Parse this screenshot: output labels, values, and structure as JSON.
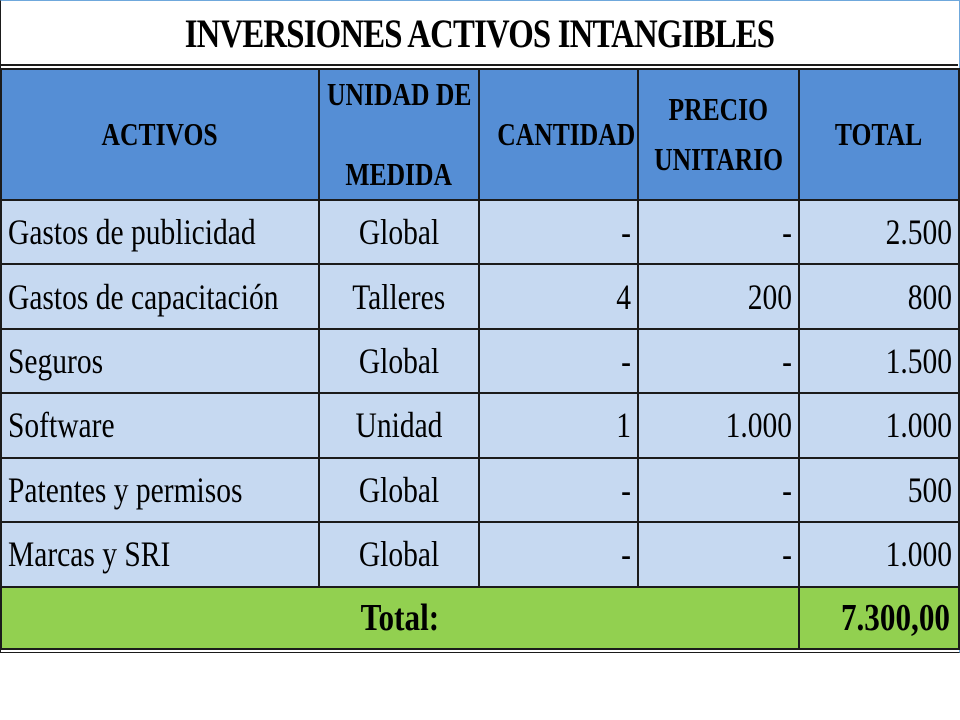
{
  "title": "INVERSIONES ACTIVOS INTANGIBLES",
  "columns": {
    "activos": "ACTIVOS",
    "unidad_line1": "UNIDAD DE",
    "unidad_line2": "MEDIDA",
    "cantidad": "CANTIDAD",
    "precio_line1": "PRECIO",
    "precio_line2": "UNITARIO",
    "total": "TOTAL"
  },
  "rows": [
    {
      "activo": "Gastos de publicidad",
      "unidad": "Global",
      "cantidad": "-",
      "precio": "-",
      "total": "2.500"
    },
    {
      "activo": "Gastos de capacitación",
      "unidad": "Talleres",
      "cantidad": "4",
      "precio": "200",
      "total": "800"
    },
    {
      "activo": "Seguros",
      "unidad": "Global",
      "cantidad": "-",
      "precio": "-",
      "total": "1.500"
    },
    {
      "activo": "Software",
      "unidad": "Unidad",
      "cantidad": "1",
      "precio": "1.000",
      "total": "1.000"
    },
    {
      "activo": "Patentes y permisos",
      "unidad": "Global",
      "cantidad": "-",
      "precio": "-",
      "total": "500"
    },
    {
      "activo": "Marcas y SRI",
      "unidad": "Global",
      "cantidad": "-",
      "precio": "-",
      "total": "1.000"
    }
  ],
  "footer": {
    "label": "Total:",
    "value": "7.300,00"
  },
  "colors": {
    "header_bg": "#558ed5",
    "row_bg": "#c6d9f1",
    "total_bg": "#92d050"
  }
}
